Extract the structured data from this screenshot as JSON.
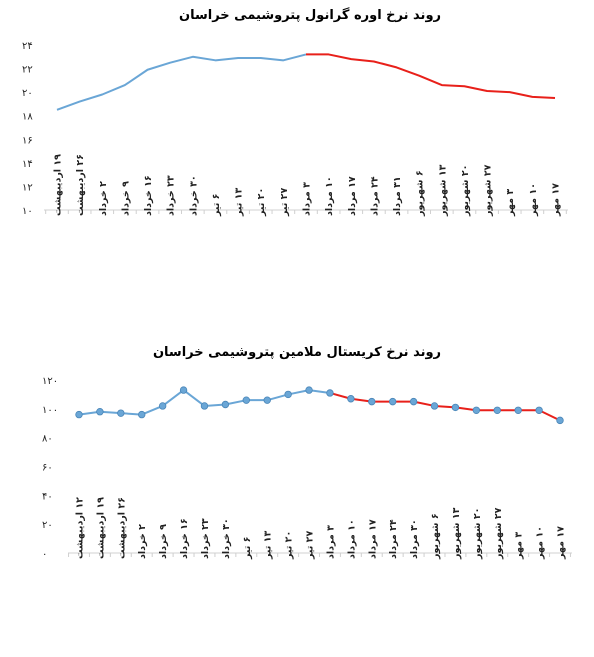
{
  "chart_data": [
    {
      "type": "line",
      "title": "روند نرخ اوره گرانول پتروشیمی خراسان",
      "ylim": [
        10,
        24
      ],
      "yticks": [
        10,
        12,
        14,
        16,
        18,
        20,
        22,
        24
      ],
      "grid": false,
      "categories": [
        "۱۹ اردیبهشت",
        "۲۶ اردیبهشت",
        "۲ خرداد",
        "۹ خرداد",
        "۱۶ خرداد",
        "۲۳ خرداد",
        "۳۰ خرداد",
        "۶ تیر",
        "۱۳ تیر",
        "۲۰ تیر",
        "۲۷ تیر",
        "۳ مرداد",
        "۱۰ مرداد",
        "۱۷ مرداد",
        "۲۴ مرداد",
        "۳۱ مرداد",
        "۶ شهریور",
        "۱۳ شهریور",
        "۲۰ شهریور",
        "۲۷ شهریور",
        "۳ مهر",
        "۱۰ مهر",
        "۱۷ مهر"
      ],
      "values": [
        18.5,
        19.2,
        19.8,
        20.6,
        21.9,
        22.5,
        23.0,
        22.7,
        22.9,
        22.9,
        22.7,
        23.2,
        23.2,
        22.8,
        22.6,
        22.1,
        21.4,
        20.6,
        20.5,
        20.1,
        20.0,
        19.6,
        19.5
      ],
      "series": [
        {
          "color": "#6aa6d6",
          "from": 0,
          "to": 11
        },
        {
          "color": "#e8201a",
          "from": 11,
          "to": 22
        }
      ],
      "markers": false
    },
    {
      "type": "line",
      "title": "روند نرخ کریستال ملامین پتروشیمی خراسان",
      "ylim": [
        0,
        120
      ],
      "yticks": [
        0,
        20,
        40,
        60,
        80,
        100,
        120
      ],
      "grid": false,
      "categories": [
        "۱۲ اردیبهشت",
        "۱۹ اردیبهشت",
        "۲۶ اردیبهشت",
        "۲ خرداد",
        "۹ خرداد",
        "۱۶ خرداد",
        "۲۳ خرداد",
        "۳۰ خرداد",
        "۶ تیر",
        "۱۳ تیر",
        "۲۰ تیر",
        "۲۷ تیر",
        "۳ مرداد",
        "۱۰ مرداد",
        "۱۷ مرداد",
        "۲۴ مرداد",
        "۳۰ مرداد",
        "۶ شهریور",
        "۱۳ شهریور",
        "۲۰ شهریور",
        "۲۷ شهریور",
        "۳ مهر",
        "۱۰ مهر",
        "۱۷ مهر"
      ],
      "values": [
        96,
        98,
        97,
        96,
        102,
        113,
        102,
        103,
        106,
        106,
        110,
        113,
        111,
        107,
        105,
        105,
        105,
        102,
        101,
        99,
        99,
        99,
        99,
        92
      ],
      "series": [
        {
          "color": "#6aa6d6",
          "from": 0,
          "to": 12
        },
        {
          "color": "#e8201a",
          "from": 12,
          "to": 23
        }
      ],
      "markers": true,
      "marker_color": "#6aa6d6"
    }
  ]
}
